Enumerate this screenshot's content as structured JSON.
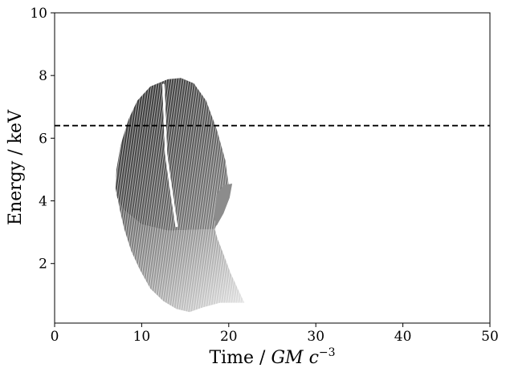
{
  "chart_data": {
    "type": "heatmap",
    "title": "",
    "xlabel": "Time / ",
    "xlabel_unit": "GM c",
    "xlabel_exponent": "−3",
    "ylabel": "Energy / keV",
    "xlim": [
      0,
      50
    ],
    "ylim": [
      0.1,
      10
    ],
    "xticks": [
      0,
      10,
      20,
      30,
      40,
      50
    ],
    "xtick_labels": [
      "0",
      "10",
      "20",
      "30",
      "40",
      "50"
    ],
    "yticks": [
      2,
      4,
      6,
      8,
      10
    ],
    "ytick_labels": [
      "2",
      "4",
      "6",
      "8",
      "10"
    ],
    "grid": false,
    "colormap": "greyscale (white = low, black = high intensity)",
    "reference_line": {
      "y": 6.4,
      "style": "dashed",
      "color": "#000000"
    },
    "bright_ridge": [
      [
        12.5,
        7.7
      ],
      [
        12.8,
        5.5
      ],
      [
        13.3,
        4.5
      ],
      [
        14.0,
        3.2
      ]
    ],
    "upper_region": {
      "outline": [
        [
          7.0,
          4.4
        ],
        [
          7.1,
          5.0
        ],
        [
          7.6,
          5.8
        ],
        [
          8.5,
          6.6
        ],
        [
          9.5,
          7.2
        ],
        [
          11.0,
          7.65
        ],
        [
          13.0,
          7.88
        ],
        [
          14.5,
          7.92
        ],
        [
          16.0,
          7.75
        ],
        [
          17.4,
          7.2
        ],
        [
          18.6,
          6.3
        ],
        [
          19.6,
          5.3
        ],
        [
          20.0,
          4.5
        ],
        [
          19.2,
          3.7
        ],
        [
          18.4,
          3.1
        ],
        [
          13.0,
          3.05
        ],
        [
          10.0,
          3.25
        ],
        [
          8.0,
          3.7
        ],
        [
          7.2,
          4.1
        ]
      ],
      "intensity": [
        0.6,
        0.8
      ]
    },
    "lower_region": {
      "outline": [
        [
          7.1,
          4.3
        ],
        [
          7.5,
          3.7
        ],
        [
          8.0,
          3.1
        ],
        [
          8.8,
          2.4
        ],
        [
          9.8,
          1.8
        ],
        [
          11.0,
          1.2
        ],
        [
          12.5,
          0.8
        ],
        [
          14.0,
          0.55
        ],
        [
          15.5,
          0.45
        ],
        [
          17.0,
          0.6
        ],
        [
          19.0,
          0.75
        ],
        [
          21.8,
          0.75
        ],
        [
          21.2,
          1.1
        ],
        [
          20.2,
          1.7
        ],
        [
          19.4,
          2.3
        ],
        [
          18.7,
          2.8
        ],
        [
          18.4,
          3.1
        ],
        [
          13.0,
          3.05
        ],
        [
          10.0,
          3.25
        ],
        [
          8.0,
          3.7
        ]
      ],
      "intensity": [
        0.25,
        0.55
      ]
    },
    "side_lobe": {
      "outline": [
        [
          18.3,
          3.5
        ],
        [
          18.6,
          4.2
        ],
        [
          19.4,
          4.5
        ],
        [
          20.4,
          4.55
        ],
        [
          20.1,
          4.1
        ],
        [
          19.4,
          3.6
        ],
        [
          18.6,
          3.2
        ]
      ],
      "intensity": 0.35
    }
  }
}
